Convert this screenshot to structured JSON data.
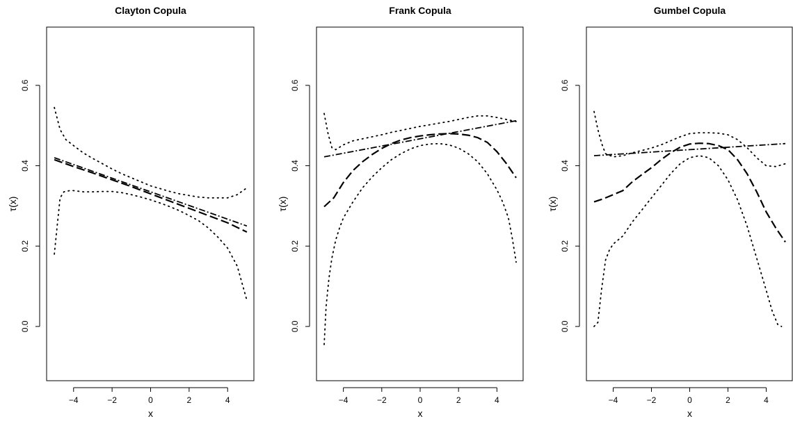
{
  "chart_data": [
    {
      "type": "line",
      "title": "Clayton Copula",
      "xlabel": "x",
      "ylabel": "τ(x)",
      "xlim": [
        -5.4,
        5.4
      ],
      "ylim": [
        -0.135,
        0.745
      ],
      "xticks": [
        -4,
        -2,
        0,
        2,
        4
      ],
      "xtick_labels": [
        "−4",
        "−2",
        "0",
        "2",
        "4"
      ],
      "yticks": [
        0.0,
        0.2,
        0.4,
        0.6
      ],
      "ytick_labels": [
        "0.0",
        "0.2",
        "0.4",
        "0.6"
      ],
      "grid": false,
      "series": [
        {
          "style": "dashdot",
          "x": [
            -5,
            0,
            5
          ],
          "y": [
            0.42,
            0.335,
            0.25
          ]
        },
        {
          "style": "dashed",
          "x": [
            -5,
            -4,
            -3,
            -2,
            -1,
            0,
            1,
            2,
            3,
            4,
            5
          ],
          "y": [
            0.415,
            0.398,
            0.382,
            0.365,
            0.348,
            0.33,
            0.312,
            0.294,
            0.276,
            0.258,
            0.235
          ]
        },
        {
          "style": "dotted",
          "x": [
            -5,
            -4.7,
            -4.4,
            -4,
            -3.5,
            -3,
            -2.5,
            -2,
            -1.5,
            -1,
            -0.5,
            0,
            0.5,
            1,
            1.5,
            2,
            2.5,
            3,
            3.5,
            4,
            4.5,
            5
          ],
          "y": [
            0.545,
            0.49,
            0.465,
            0.45,
            0.432,
            0.418,
            0.405,
            0.392,
            0.38,
            0.37,
            0.36,
            0.35,
            0.343,
            0.336,
            0.33,
            0.326,
            0.322,
            0.32,
            0.32,
            0.32,
            0.328,
            0.345
          ]
        },
        {
          "style": "dotted",
          "x": [
            -5,
            -4.85,
            -4.7,
            -4.5,
            -4.2,
            -4,
            -3.5,
            -3,
            -2.5,
            -2,
            -1.5,
            -1,
            -0.5,
            0,
            0.5,
            1,
            1.5,
            2,
            2.5,
            3,
            3.5,
            4,
            4.5,
            5
          ],
          "y": [
            0.18,
            0.25,
            0.32,
            0.335,
            0.338,
            0.338,
            0.335,
            0.335,
            0.336,
            0.336,
            0.333,
            0.328,
            0.322,
            0.315,
            0.307,
            0.298,
            0.288,
            0.276,
            0.263,
            0.245,
            0.222,
            0.195,
            0.15,
            0.065
          ]
        }
      ]
    },
    {
      "type": "line",
      "title": "Frank Copula",
      "xlabel": "x",
      "ylabel": "τ(x)",
      "xlim": [
        -5.4,
        5.4
      ],
      "ylim": [
        -0.135,
        0.745
      ],
      "xticks": [
        -4,
        -2,
        0,
        2,
        4
      ],
      "xtick_labels": [
        "−4",
        "−2",
        "0",
        "2",
        "4"
      ],
      "yticks": [
        0.0,
        0.2,
        0.4,
        0.6
      ],
      "ytick_labels": [
        "0.0",
        "0.2",
        "0.4",
        "0.6"
      ],
      "grid": false,
      "series": [
        {
          "style": "dashdot",
          "x": [
            -5,
            0,
            5
          ],
          "y": [
            0.422,
            0.467,
            0.512
          ]
        },
        {
          "style": "dashed",
          "x": [
            -5,
            -4.5,
            -4,
            -3.5,
            -3,
            -2.5,
            -2,
            -1.5,
            -1,
            -0.5,
            0,
            0.5,
            1,
            1.5,
            2,
            2.5,
            3,
            3.5,
            4,
            4.5,
            5
          ],
          "y": [
            0.298,
            0.32,
            0.358,
            0.388,
            0.41,
            0.428,
            0.443,
            0.455,
            0.464,
            0.47,
            0.474,
            0.477,
            0.479,
            0.48,
            0.479,
            0.476,
            0.47,
            0.458,
            0.435,
            0.405,
            0.37
          ]
        },
        {
          "style": "dotted",
          "x": [
            -5,
            -4.8,
            -4.6,
            -4.4,
            -4,
            -3.5,
            -3,
            -2.5,
            -2,
            -1.5,
            -1,
            -0.5,
            0,
            0.5,
            1,
            1.5,
            2,
            2.5,
            3,
            3.5,
            4,
            4.5,
            5
          ],
          "y": [
            0.53,
            0.48,
            0.445,
            0.44,
            0.452,
            0.462,
            0.467,
            0.472,
            0.477,
            0.483,
            0.488,
            0.493,
            0.498,
            0.502,
            0.506,
            0.51,
            0.515,
            0.52,
            0.524,
            0.524,
            0.52,
            0.515,
            0.51
          ]
        },
        {
          "style": "dotted",
          "x": [
            -5,
            -4.9,
            -4.75,
            -4.6,
            -4.4,
            -4.2,
            -4,
            -3.5,
            -3,
            -2.5,
            -2,
            -1.5,
            -1,
            -0.5,
            0,
            0.5,
            1,
            1.5,
            2,
            2.5,
            3,
            3.5,
            4,
            4.3,
            4.6,
            4.8,
            5
          ],
          "y": [
            -0.045,
            0.05,
            0.12,
            0.17,
            0.215,
            0.245,
            0.27,
            0.31,
            0.345,
            0.372,
            0.395,
            0.415,
            0.43,
            0.442,
            0.45,
            0.454,
            0.455,
            0.452,
            0.444,
            0.43,
            0.41,
            0.38,
            0.34,
            0.31,
            0.27,
            0.22,
            0.16
          ]
        }
      ]
    },
    {
      "type": "line",
      "title": "Gumbel Copula",
      "xlabel": "x",
      "ylabel": "τ(x)",
      "xlim": [
        -5.4,
        5.4
      ],
      "ylim": [
        -0.135,
        0.745
      ],
      "xticks": [
        -4,
        -2,
        0,
        2,
        4
      ],
      "xtick_labels": [
        "−4",
        "−2",
        "0",
        "2",
        "4"
      ],
      "yticks": [
        0.0,
        0.2,
        0.4,
        0.6
      ],
      "ytick_labels": [
        "0.0",
        "0.2",
        "0.4",
        "0.6"
      ],
      "grid": false,
      "series": [
        {
          "style": "dashdot",
          "x": [
            -5,
            0,
            5
          ],
          "y": [
            0.425,
            0.44,
            0.455
          ]
        },
        {
          "style": "dashed",
          "x": [
            -5,
            -4.5,
            -4,
            -3.5,
            -3,
            -2.5,
            -2,
            -1.5,
            -1,
            -0.5,
            0,
            0.5,
            1,
            1.5,
            2,
            2.5,
            3,
            3.5,
            4,
            4.5,
            5
          ],
          "y": [
            0.31,
            0.318,
            0.328,
            0.338,
            0.36,
            0.378,
            0.395,
            0.415,
            0.432,
            0.446,
            0.454,
            0.456,
            0.455,
            0.45,
            0.44,
            0.415,
            0.38,
            0.335,
            0.285,
            0.245,
            0.21
          ]
        },
        {
          "style": "dotted",
          "x": [
            -5,
            -4.8,
            -4.6,
            -4.4,
            -4,
            -3.5,
            -3,
            -2.5,
            -2,
            -1.5,
            -1,
            -0.5,
            0,
            0.5,
            1,
            1.5,
            2,
            2.5,
            3,
            3.5,
            4,
            4.5,
            5
          ],
          "y": [
            0.535,
            0.49,
            0.455,
            0.43,
            0.422,
            0.425,
            0.432,
            0.438,
            0.444,
            0.452,
            0.462,
            0.472,
            0.48,
            0.482,
            0.482,
            0.481,
            0.477,
            0.465,
            0.445,
            0.42,
            0.4,
            0.398,
            0.405
          ]
        },
        {
          "style": "dotted",
          "x": [
            -5,
            -4.8,
            -4.6,
            -4.4,
            -4.2,
            -4,
            -3.5,
            -3,
            -2.5,
            -2,
            -1.5,
            -1,
            -0.5,
            0,
            0.5,
            1,
            1.5,
            2,
            2.5,
            3,
            3.5,
            4,
            4.3,
            4.6,
            4.8
          ],
          "y": [
            0.0,
            0.01,
            0.095,
            0.165,
            0.19,
            0.205,
            0.225,
            0.26,
            0.29,
            0.32,
            0.35,
            0.38,
            0.405,
            0.42,
            0.425,
            0.42,
            0.4,
            0.365,
            0.315,
            0.25,
            0.17,
            0.09,
            0.04,
            0.005,
            0.0
          ]
        }
      ]
    }
  ]
}
